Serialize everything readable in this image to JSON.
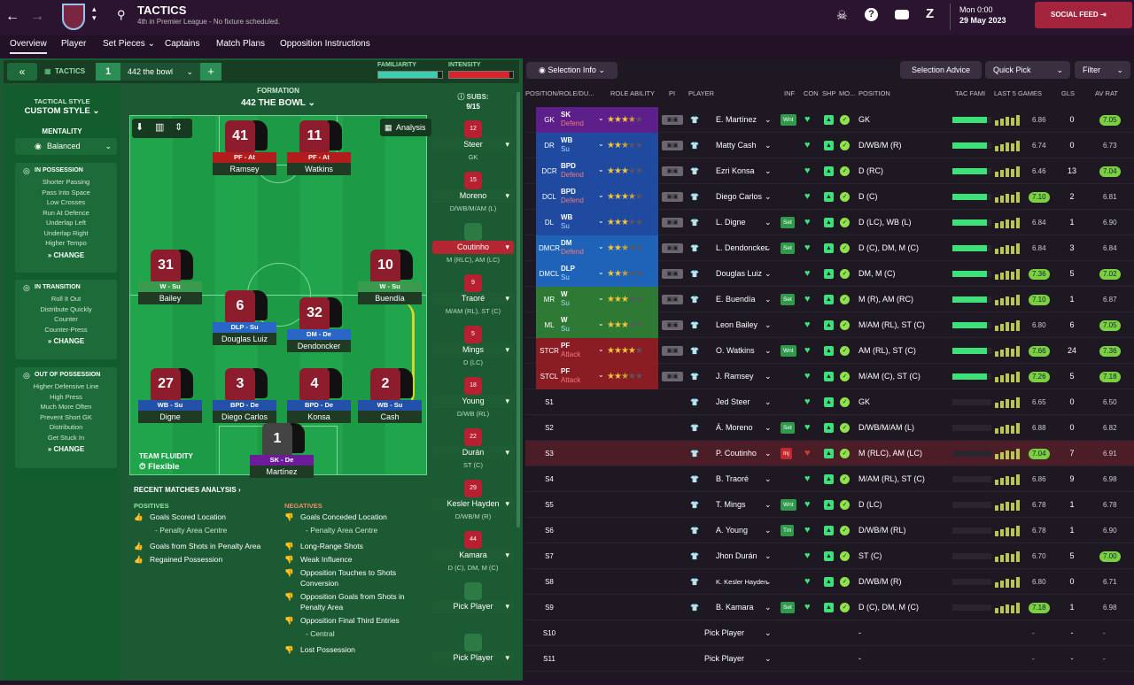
{
  "header": {
    "title": "TACTICS",
    "subtitle": "4th in Premier League - No fixture scheduled.",
    "date_line1": "Mon 0:00",
    "date_line2": "29 May 2023",
    "social_feed": "SOCIAL FEED"
  },
  "nav": {
    "tabs": [
      {
        "label": "Overview"
      },
      {
        "label": "Player"
      },
      {
        "label": "Set Pieces ⌄"
      },
      {
        "label": "Captains"
      },
      {
        "label": "Match Plans"
      },
      {
        "label": "Opposition Instructions"
      }
    ]
  },
  "ctrl": {
    "tactics_label": "TACTICS",
    "slot": "1",
    "tactic_name": "442 the bowl",
    "familiarity": "FAMILIARITY",
    "intensity": "INTENSITY",
    "add": "+"
  },
  "style": {
    "header": "TACTICAL STYLE",
    "style_name": "CUSTOM STYLE",
    "mentality_label": "MENTALITY",
    "mentality_value": "Balanced",
    "in_possession": {
      "title": "IN POSSESSION",
      "items": [
        "Shorter Passing",
        "Pass Into Space",
        "Low Crosses",
        "Run At Defence",
        "Underlap Left",
        "Underlap Right",
        "Higher Tempo"
      ],
      "change": "CHANGE"
    },
    "in_transition": {
      "title": "IN TRANSITION",
      "items": [
        "Roll It Out",
        "Distribute Quickly",
        "Counter",
        "Counter-Press"
      ],
      "change": "CHANGE"
    },
    "out_of_possession": {
      "title": "OUT OF POSSESSION",
      "items": [
        "Higher Defensive Line",
        "High Press",
        "Much More Often",
        "Prevent Short GK",
        "Distribution",
        "Get Stuck In"
      ],
      "change": "CHANGE"
    }
  },
  "formation": {
    "label": "FORMATION",
    "name": "442 THE BOWL",
    "analysis_btn": "Analysis",
    "team_fluidity_label": "TEAM FLUIDITY",
    "team_fluidity_value": "Flexible"
  },
  "pitch_players": [
    {
      "num": "41",
      "role": "PF - At",
      "name": "Ramsey",
      "cls": "r-at"
    },
    {
      "num": "11",
      "role": "PF - At",
      "name": "Watkins",
      "cls": "r-at"
    },
    {
      "num": "31",
      "role": "W - Su",
      "name": "Bailey",
      "cls": "r-su"
    },
    {
      "num": "10",
      "role": "W - Su",
      "name": "Buendía",
      "cls": "r-su"
    },
    {
      "num": "6",
      "role": "DLP - Su",
      "name": "Douglas Luiz",
      "cls": "r-dlp"
    },
    {
      "num": "32",
      "role": "DM - De",
      "name": "Dendoncker",
      "cls": "r-dlp"
    },
    {
      "num": "27",
      "role": "WB - Su",
      "name": "Digne",
      "cls": "r-wb"
    },
    {
      "num": "3",
      "role": "BPD - De",
      "name": "Diego Carlos",
      "cls": "r-wb"
    },
    {
      "num": "4",
      "role": "BPD - De",
      "name": "Konsa",
      "cls": "r-wb"
    },
    {
      "num": "2",
      "role": "WB - Su",
      "name": "Cash",
      "cls": "r-wb"
    },
    {
      "num": "1",
      "role": "SK - De",
      "name": "Martínez",
      "cls": "r-sk"
    }
  ],
  "subs": {
    "label": "SUBS:",
    "count": "9/15",
    "list": [
      {
        "num": "12",
        "name": "Steer",
        "pos": "GK"
      },
      {
        "num": "15",
        "name": "Moreno",
        "pos": "D/WB/M/AM (L)"
      },
      {
        "num": "",
        "name": "Coutinho",
        "pos": "M (RLC), AM (LC)"
      },
      {
        "num": "9",
        "name": "Traoré",
        "pos": "M/AM (RL), ST (C)"
      },
      {
        "num": "5",
        "name": "Mings",
        "pos": "D (LC)"
      },
      {
        "num": "18",
        "name": "Young",
        "pos": "D/WB (RL)"
      },
      {
        "num": "22",
        "name": "Durán",
        "pos": "ST (C)"
      },
      {
        "num": "29",
        "name": "Kesler Hayden",
        "pos": "D/WB/M (R)"
      },
      {
        "num": "44",
        "name": "Kamara",
        "pos": "D (C), DM, M (C)"
      },
      {
        "num": "",
        "name": "Pick Player",
        "pos": ""
      },
      {
        "num": "",
        "name": "Pick Player",
        "pos": ""
      }
    ]
  },
  "analysis": {
    "title": "RECENT MATCHES ANALYSIS ›",
    "positives_label": "POSITIVES",
    "negatives_label": "NEGATIVES",
    "positives": [
      "Goals Scored Location",
      "- Penalty Area Centre",
      "Goals from Shots in Penalty Area",
      "Regained Possession"
    ],
    "negatives": [
      "Goals Conceded Location",
      "- Penalty Area Centre",
      "Long-Range Shots",
      "Weak Influence",
      "Opposition Touches to Shots Conversion",
      "Opposition Goals from Shots in Penalty Area",
      "Opposition Final Third Entries",
      "- Central",
      "Lost Possession"
    ]
  },
  "toolbar": {
    "selection_info": "Selection Info",
    "selection_advice": "Selection Advice",
    "quick_pick": "Quick Pick",
    "filter": "Filter"
  },
  "columns": [
    "POSITION/ROLE/DU...",
    "ROLE ABILITY",
    "PI",
    "PLAYER",
    "INF",
    "CON",
    "SHP",
    "MO...",
    "POSITION",
    "TAC FAMI",
    "LAST 5 GAMES",
    "GLS",
    "AV RAT"
  ],
  "rows": [
    {
      "pos": "GK",
      "role": "SK",
      "duty": "Defend",
      "stars": 3.5,
      "player": "E. Martínez",
      "inf": "Wnt",
      "position": "GK",
      "rating": "6.86",
      "gls": "0",
      "avrat": "7.05",
      "color": "#5d1f8a",
      "hl": true
    },
    {
      "pos": "DR",
      "role": "WB",
      "duty": "Su",
      "stars": 2.5,
      "player": "Matty Cash",
      "inf": "",
      "position": "D/WB/M (R)",
      "rating": "6.74",
      "gls": "0",
      "avrat": "6.73",
      "color": "#1f4aa0",
      "hl": false
    },
    {
      "pos": "DCR",
      "role": "BPD",
      "duty": "Defend",
      "stars": 3,
      "player": "Ezri Konsa",
      "inf": "",
      "position": "D (RC)",
      "rating": "6.46",
      "gls": "13",
      "avrat": "7.04",
      "color": "#1f4aa0",
      "hl": true
    },
    {
      "pos": "DCL",
      "role": "BPD",
      "duty": "Defend",
      "stars": 3.5,
      "player": "Diego Carlos",
      "inf": "",
      "position": "D (C)",
      "rating": "7.10",
      "gls": "2",
      "avrat": "6.81",
      "color": "#1f4aa0",
      "hl": false
    },
    {
      "pos": "DL",
      "role": "WB",
      "duty": "Su",
      "stars": 3,
      "player": "L. Digne",
      "inf": "Set",
      "position": "D (LC), WB (L)",
      "rating": "6.84",
      "gls": "1",
      "avrat": "6.90",
      "color": "#1f4aa0",
      "hl": false
    },
    {
      "pos": "DMCR",
      "role": "DM",
      "duty": "Defend",
      "stars": 2.5,
      "player": "L. Dendoncker",
      "inf": "Set",
      "position": "D (C), DM, M (C)",
      "rating": "6.84",
      "gls": "3",
      "avrat": "6.84",
      "color": "#1f63b8",
      "hl": false
    },
    {
      "pos": "DMCL",
      "role": "DLP",
      "duty": "Su",
      "stars": 2.5,
      "player": "Douglas Luiz",
      "inf": "",
      "position": "DM, M (C)",
      "rating": "7.36",
      "gls": "5",
      "avrat": "7.02",
      "color": "#1f63b8",
      "hl": true
    },
    {
      "pos": "MR",
      "role": "W",
      "duty": "Su",
      "stars": 3,
      "player": "E. Buendía",
      "inf": "Set",
      "position": "M (R), AM (RC)",
      "rating": "7.10",
      "gls": "1",
      "avrat": "6.87",
      "color": "#2e7a34",
      "hl": false
    },
    {
      "pos": "ML",
      "role": "W",
      "duty": "Su",
      "stars": 3,
      "player": "Leon Bailey",
      "inf": "",
      "position": "M/AM (RL), ST (C)",
      "rating": "6.80",
      "gls": "6",
      "avrat": "7.05",
      "color": "#2e7a34",
      "hl": true
    },
    {
      "pos": "STCR",
      "role": "PF",
      "duty": "Attack",
      "stars": 4,
      "player": "O. Watkins",
      "inf": "Wnt",
      "position": "AM (RL), ST (C)",
      "rating": "7.66",
      "gls": "24",
      "avrat": "7.36",
      "color": "#8a1c24",
      "hl": true
    },
    {
      "pos": "STCL",
      "role": "PF",
      "duty": "Attack",
      "stars": 2.5,
      "player": "J. Ramsey",
      "inf": "",
      "position": "M/AM (C), ST (C)",
      "rating": "7.26",
      "gls": "5",
      "avrat": "7.18",
      "color": "#8a1c24",
      "hl": true
    },
    {
      "pos": "S1",
      "role": "",
      "duty": "",
      "stars": 0,
      "player": "Jed Steer",
      "inf": "",
      "position": "GK",
      "rating": "6.65",
      "gls": "0",
      "avrat": "6.50",
      "color": "",
      "hl": false
    },
    {
      "pos": "S2",
      "role": "",
      "duty": "",
      "stars": 0,
      "player": "Á. Moreno",
      "inf": "Set",
      "position": "D/WB/M/AM (L)",
      "rating": "6.88",
      "gls": "0",
      "avrat": "6.82",
      "color": "",
      "hl": false
    },
    {
      "pos": "S3",
      "role": "",
      "duty": "",
      "stars": 0,
      "player": "P. Coutinho",
      "inf": "Inj",
      "position": "M (RLC), AM (LC)",
      "rating": "7.04",
      "gls": "7",
      "avrat": "6.91",
      "color": "",
      "hl": false,
      "inj": true
    },
    {
      "pos": "S4",
      "role": "",
      "duty": "",
      "stars": 0,
      "player": "B. Traoré",
      "inf": "",
      "position": "M/AM (RL), ST (C)",
      "rating": "6.86",
      "gls": "9",
      "avrat": "6.98",
      "color": "",
      "hl": false
    },
    {
      "pos": "S5",
      "role": "",
      "duty": "",
      "stars": 0,
      "player": "T. Mings",
      "inf": "Wnt",
      "position": "D (LC)",
      "rating": "6.78",
      "gls": "1",
      "avrat": "6.78",
      "color": "",
      "hl": false
    },
    {
      "pos": "S6",
      "role": "",
      "duty": "",
      "stars": 0,
      "player": "A. Young",
      "inf": "Tm",
      "position": "D/WB/M (RL)",
      "rating": "6.78",
      "gls": "1",
      "avrat": "6.90",
      "color": "",
      "hl": false
    },
    {
      "pos": "S7",
      "role": "",
      "duty": "",
      "stars": 0,
      "player": "Jhon Durán",
      "inf": "",
      "position": "ST (C)",
      "rating": "6.70",
      "gls": "5",
      "avrat": "7.00",
      "color": "",
      "hl": true
    },
    {
      "pos": "S8",
      "role": "",
      "duty": "",
      "stars": 0,
      "player": "K. Kesler Hayden",
      "inf": "",
      "position": "D/WB/M (R)",
      "rating": "6.80",
      "gls": "0",
      "avrat": "6.71",
      "color": "",
      "hl": false
    },
    {
      "pos": "S9",
      "role": "",
      "duty": "",
      "stars": 0,
      "player": "B. Kamara",
      "inf": "Set",
      "position": "D (C), DM, M (C)",
      "rating": "7.18",
      "gls": "1",
      "avrat": "6.98",
      "color": "",
      "hl": false
    },
    {
      "pos": "S10",
      "role": "",
      "duty": "",
      "stars": 0,
      "player": "Pick Player",
      "inf": "",
      "position": "-",
      "rating": "-",
      "gls": "-",
      "avrat": "-",
      "color": "",
      "hl": false
    },
    {
      "pos": "S11",
      "role": "",
      "duty": "",
      "stars": 0,
      "player": "Pick Player",
      "inf": "",
      "position": "-",
      "rating": "-",
      "gls": "-",
      "avrat": "-",
      "color": "",
      "hl": false
    }
  ]
}
